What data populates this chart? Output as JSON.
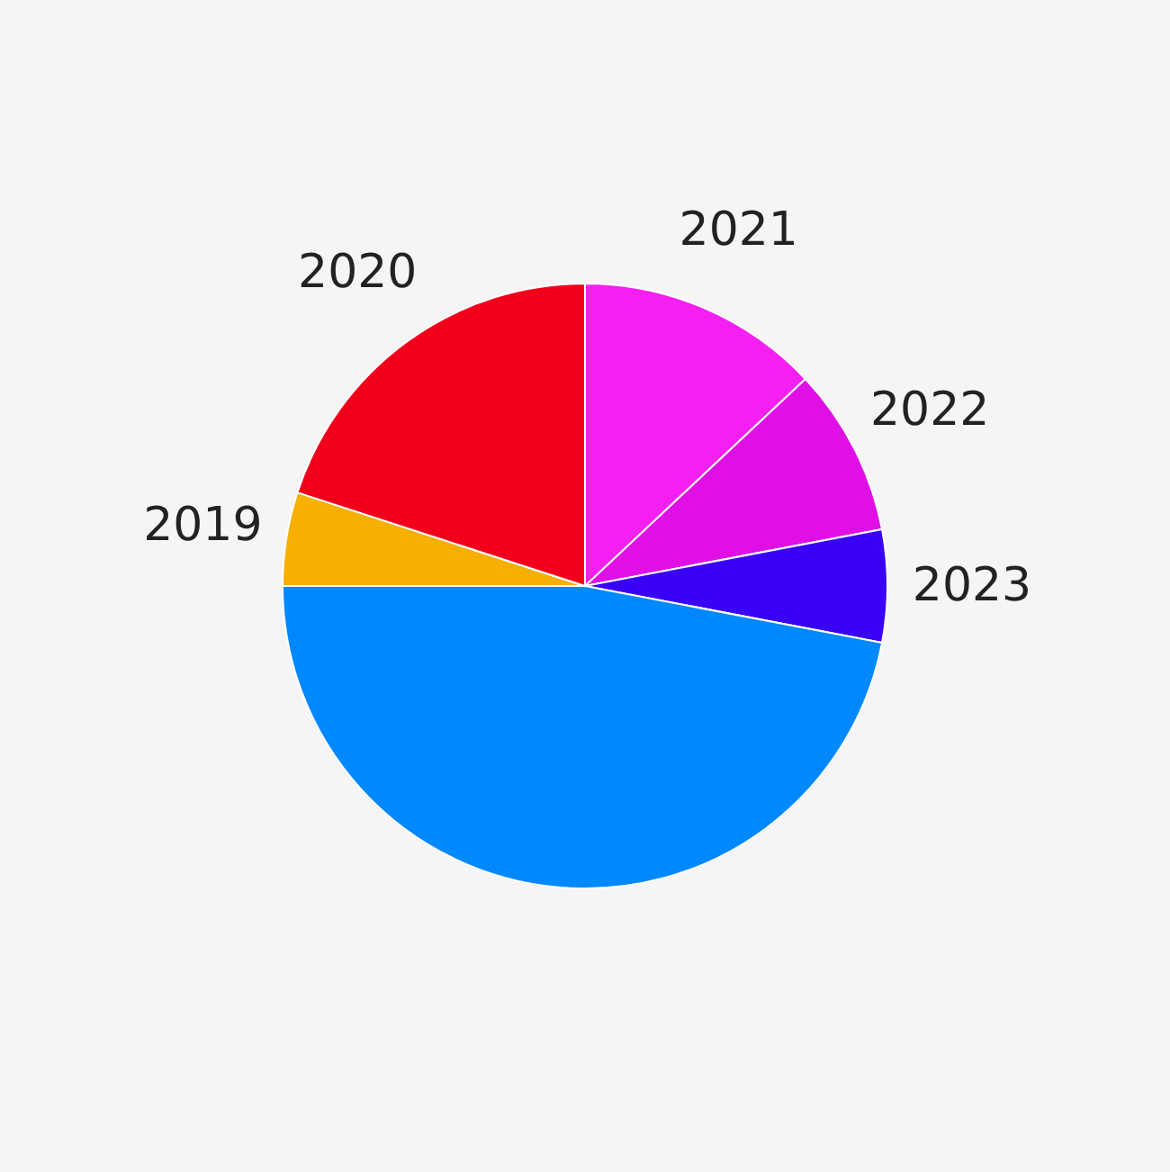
{
  "chart_data": {
    "type": "pie",
    "categories": [
      "2021",
      "2022",
      "2023",
      null,
      "2019",
      "2020"
    ],
    "values": [
      13,
      9,
      6,
      47,
      5,
      20
    ],
    "colors": [
      "#f41ff0",
      "#df0fe6",
      "#3a02f5",
      "#0088ff",
      "#f7b002",
      "#f2001b"
    ]
  }
}
